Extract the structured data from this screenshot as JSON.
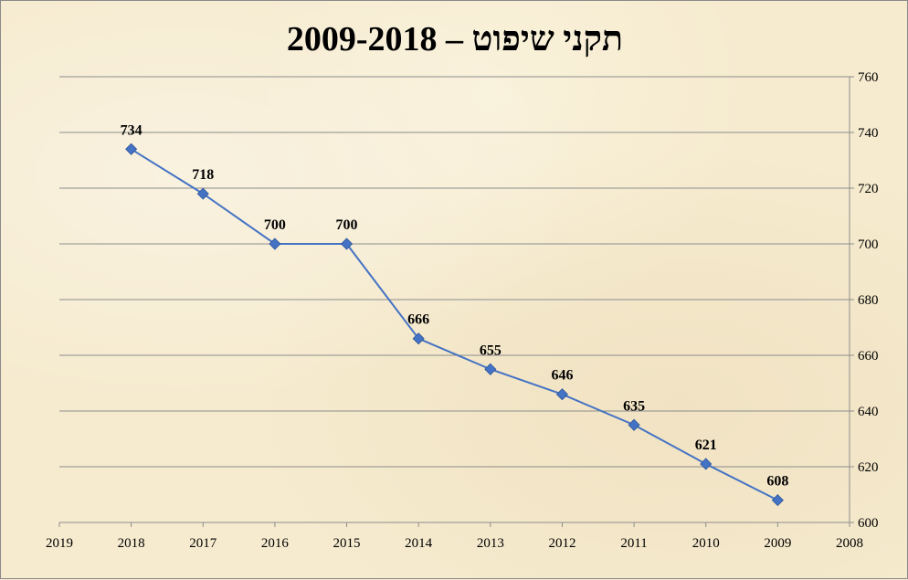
{
  "chart_data": {
    "type": "line",
    "title": "תקני שיפוט – 2009-2018",
    "xlabel": "",
    "ylabel": "",
    "x_axis_ticks": [
      "2019",
      "2018",
      "2017",
      "2016",
      "2015",
      "2014",
      "2013",
      "2012",
      "2011",
      "2010",
      "2009",
      "2008"
    ],
    "x_axis_direction": "reversed",
    "y_axis_position": "right",
    "ylim": [
      600,
      760
    ],
    "y_ticks": [
      600,
      620,
      640,
      660,
      680,
      700,
      720,
      740,
      760
    ],
    "grid": true,
    "legend": "none",
    "series": [
      {
        "color": "#4472c4",
        "marker": "diamond",
        "x": [
          2018,
          2017,
          2016,
          2015,
          2014,
          2013,
          2012,
          2011,
          2010,
          2009
        ],
        "values": [
          734,
          718,
          700,
          700,
          666,
          655,
          646,
          635,
          621,
          608
        ],
        "data_labels": [
          "734",
          "718",
          "700",
          "700",
          "666",
          "655",
          "646",
          "635",
          "621",
          "608"
        ]
      }
    ]
  }
}
